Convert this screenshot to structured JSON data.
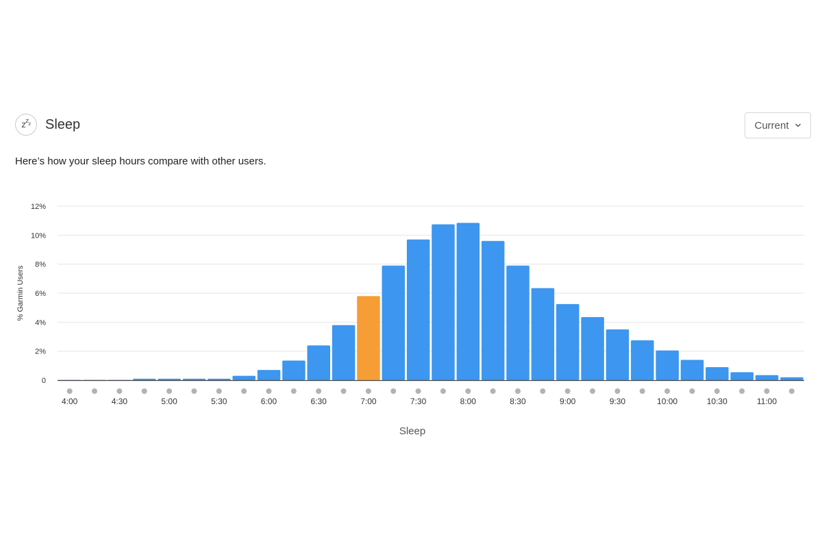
{
  "header": {
    "title": "Sleep",
    "icon": "sleep-zzz-icon",
    "icon_text": "zzz"
  },
  "dropdown": {
    "selected": "Current",
    "icon": "chevron-down-icon"
  },
  "subtitle": "Here’s how your sleep hours compare with other users.",
  "colors": {
    "bar": "#3d96ef",
    "highlight": "#f79d35",
    "grid": "#e6e6e6",
    "dot": "#b3b3b3"
  },
  "chart_data": {
    "type": "bar",
    "title": "",
    "xlabel": "Sleep",
    "ylabel": "% Garmin Users",
    "ylim": [
      0,
      12
    ],
    "yticks": [
      0,
      2,
      4,
      6,
      8,
      10,
      12
    ],
    "ytick_labels": [
      "0",
      "2%",
      "4%",
      "6%",
      "8%",
      "10%",
      "12%"
    ],
    "grid": true,
    "categories": [
      "4:00",
      "4:15",
      "4:30",
      "4:45",
      "5:00",
      "5:15",
      "5:30",
      "5:45",
      "6:00",
      "6:15",
      "6:30",
      "6:45",
      "7:00",
      "7:15",
      "7:30",
      "7:45",
      "8:00",
      "8:15",
      "8:30",
      "8:45",
      "9:00",
      "9:15",
      "9:30",
      "9:45",
      "10:00",
      "10:15",
      "10:30",
      "10:45",
      "11:00",
      "11:15"
    ],
    "tick_labels": [
      "4:00",
      "",
      "4:30",
      "",
      "5:00",
      "",
      "5:30",
      "",
      "6:00",
      "",
      "6:30",
      "",
      "7:00",
      "",
      "7:30",
      "",
      "8:00",
      "",
      "8:30",
      "",
      "9:00",
      "",
      "9:30",
      "",
      "10:00",
      "",
      "10:30",
      "",
      "11:00",
      ""
    ],
    "values": [
      0.02,
      0.02,
      0.02,
      0.1,
      0.1,
      0.1,
      0.1,
      0.3,
      0.7,
      1.35,
      2.4,
      3.8,
      5.8,
      7.9,
      9.7,
      10.75,
      10.85,
      9.6,
      7.9,
      6.35,
      5.25,
      4.35,
      3.5,
      2.75,
      2.05,
      1.4,
      0.9,
      0.55,
      0.35,
      0.2
    ],
    "highlight_category": "7:00"
  }
}
